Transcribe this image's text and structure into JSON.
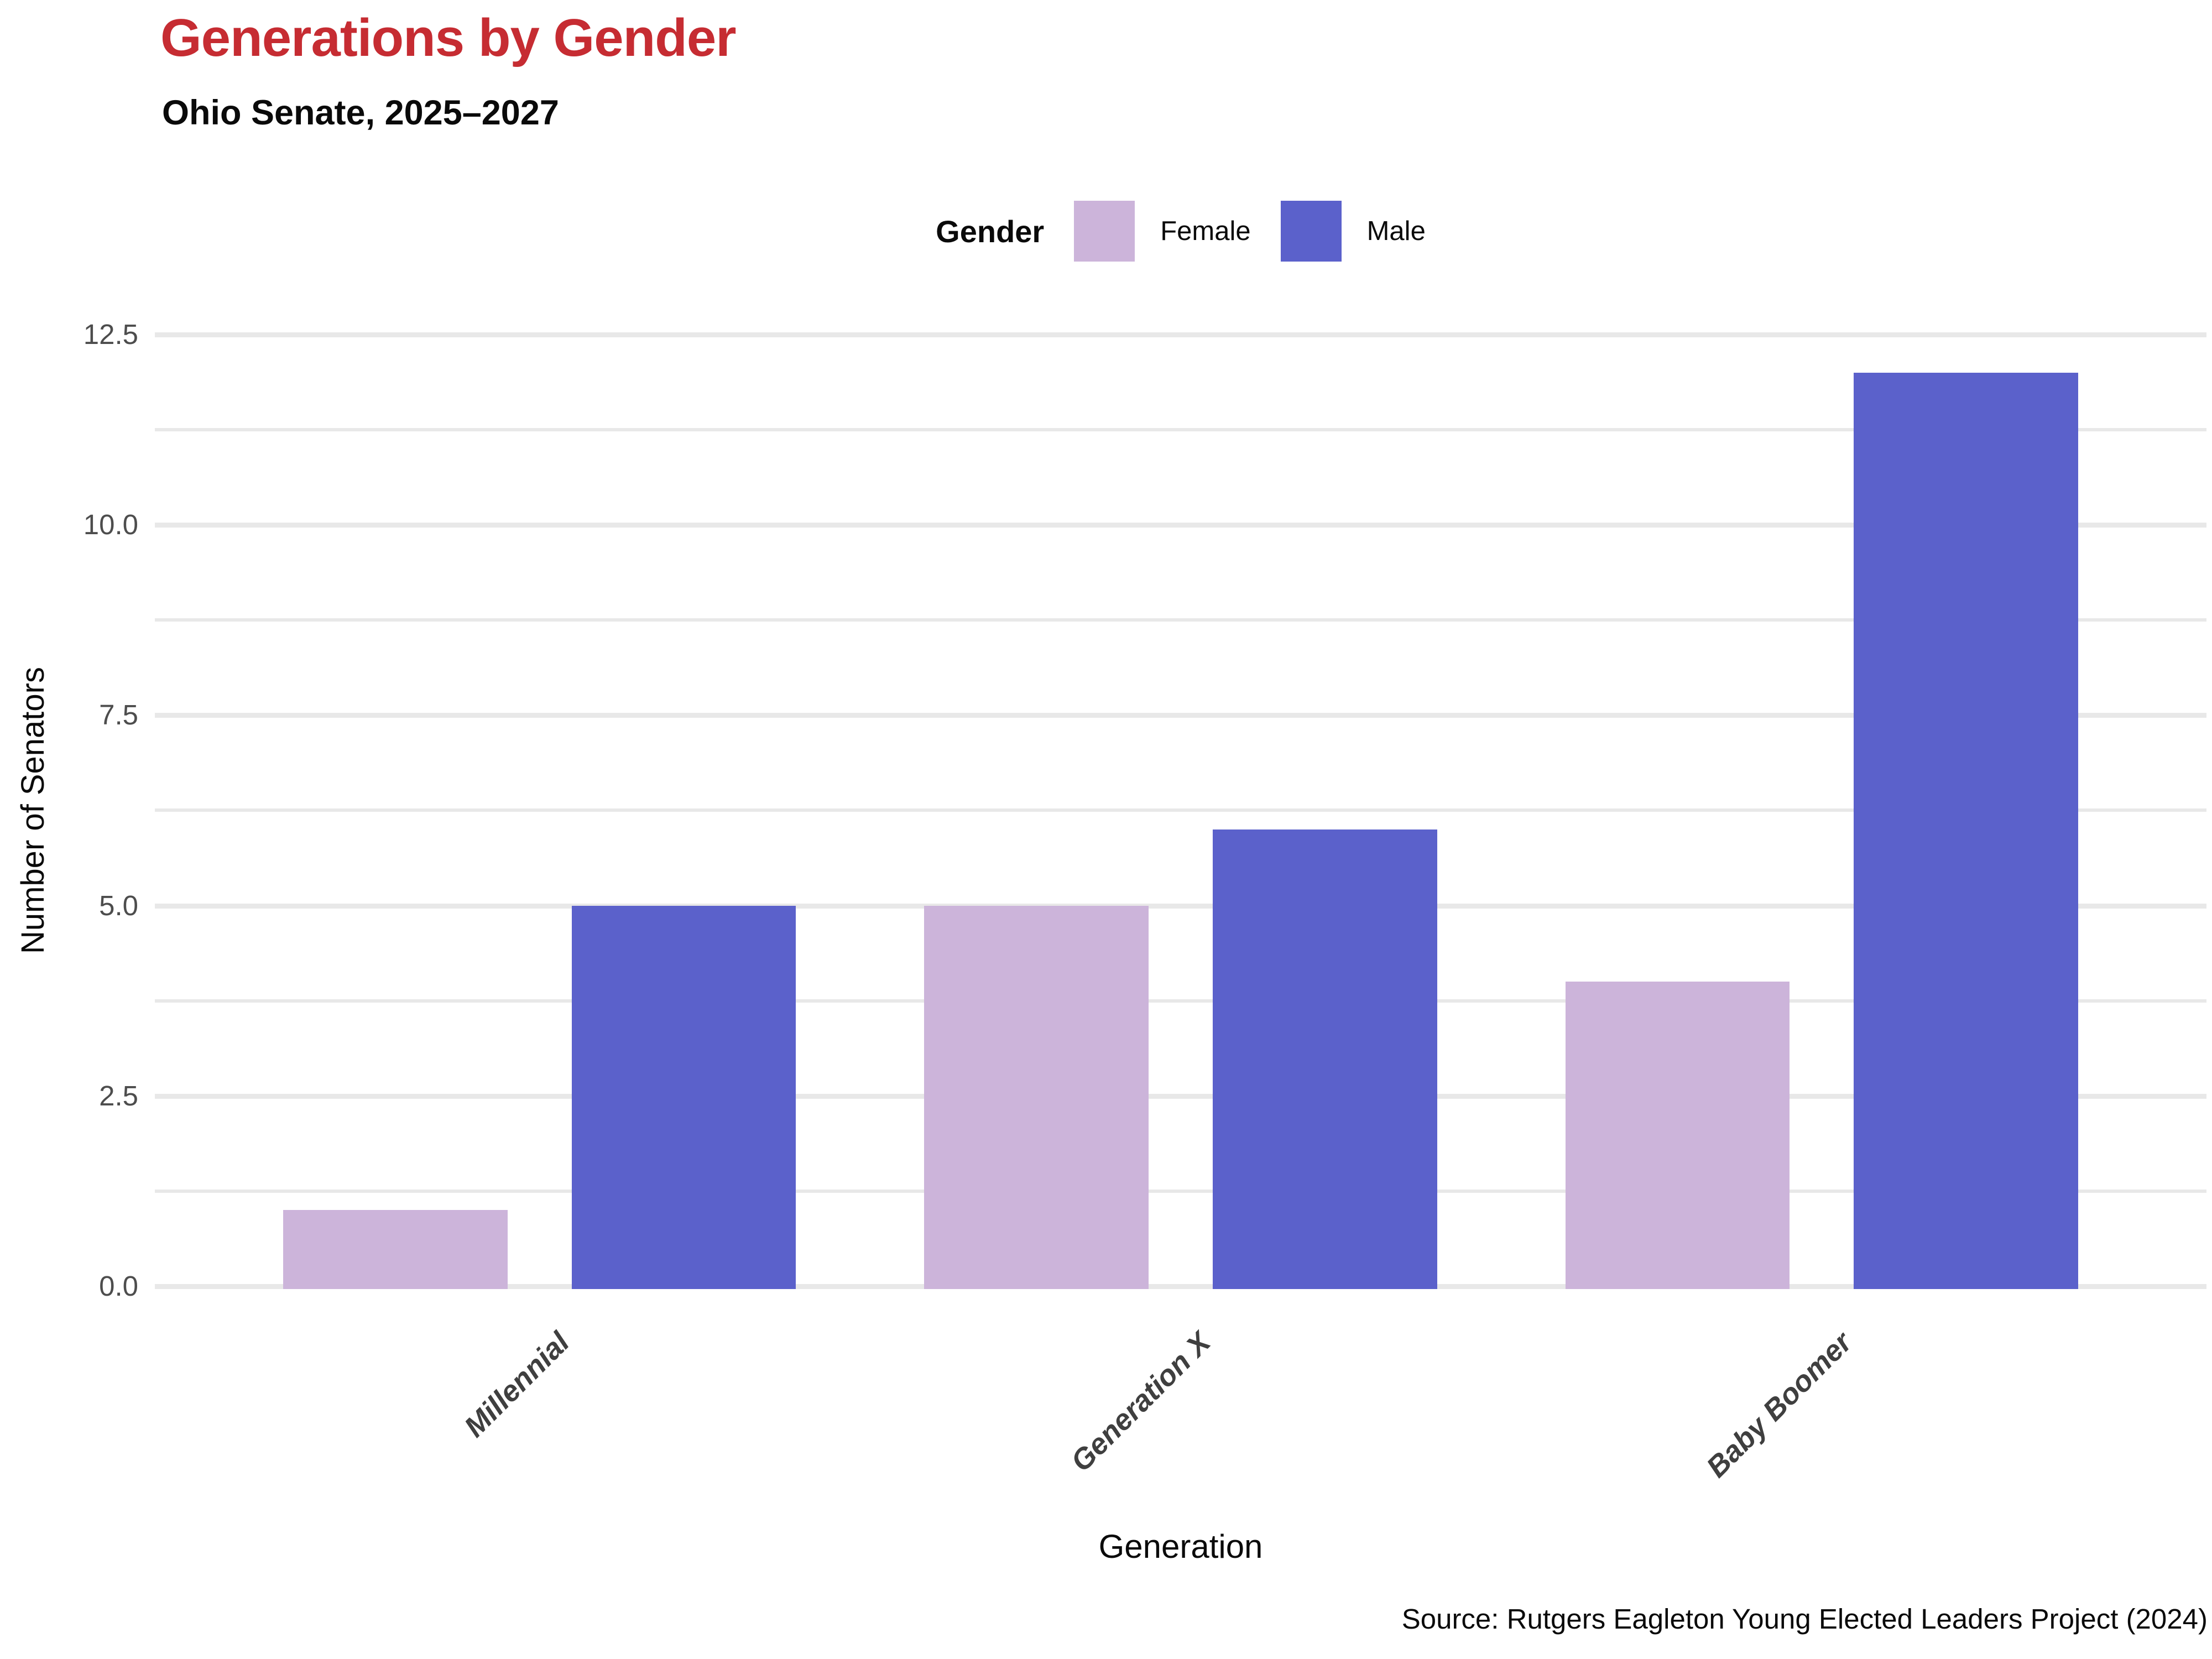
{
  "title": "Generations by Gender",
  "subtitle": "Ohio Senate, 2025–2027",
  "legend": {
    "title": "Gender",
    "items": [
      {
        "label": "Female",
        "color": "#CCB4DA"
      },
      {
        "label": "Male",
        "color": "#5B61CB"
      }
    ]
  },
  "axes": {
    "x_title": "Generation",
    "y_title": "Number of Senators"
  },
  "source": "Source: Rutgers Eagleton Young Elected Leaders Project (2024)",
  "colors": {
    "title_red": "#C62C32",
    "female": "#CCB4DA",
    "male": "#5B61CB",
    "gridline": "#E8E8E8",
    "ytick_text": "#4D4D4D",
    "xtick_text": "#3F3F3F"
  },
  "chart_data": {
    "type": "bar",
    "title": "Generations by Gender",
    "subtitle": "Ohio Senate, 2025–2027",
    "xlabel": "Generation",
    "ylabel": "Number of Senators",
    "categories": [
      "Millennial",
      "Generation X",
      "Baby Boomer"
    ],
    "series": [
      {
        "name": "Female",
        "color": "#CCB4DA",
        "values": [
          1,
          5,
          4
        ]
      },
      {
        "name": "Male",
        "color": "#5B61CB",
        "values": [
          5,
          6,
          12
        ]
      }
    ],
    "ylim": [
      0,
      12.6
    ],
    "yticks": [
      0.0,
      2.5,
      5.0,
      7.5,
      10.0,
      12.5
    ],
    "ytick_labels": [
      "0.0",
      "2.5",
      "5.0",
      "7.5",
      "10.0",
      "12.5"
    ],
    "minor_gridlines": [
      1.25,
      3.75,
      6.25,
      8.75,
      11.25
    ],
    "grid": "horizontal, major and minor, light gray",
    "legend_position": "top-center",
    "bar_grouping": "dodged"
  }
}
